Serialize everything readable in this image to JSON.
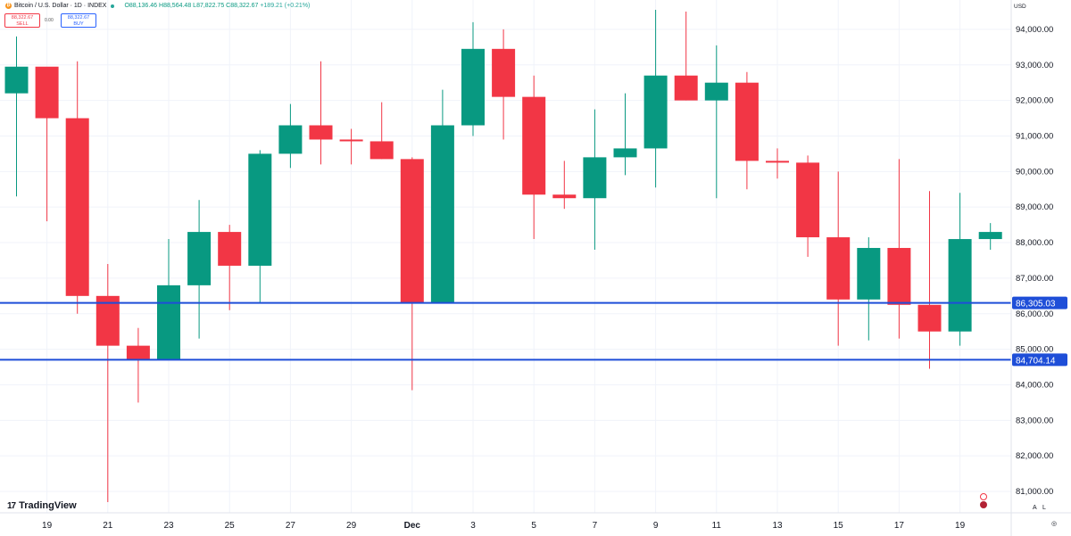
{
  "header": {
    "symbol": "Bitcoin / U.S. Dollar · 1D · INDEX",
    "open": "O88,136.46",
    "high": "H88,564.48",
    "low": "L87,822.75",
    "close": "C88,322.67",
    "change": "+189.21 (+0.21%)",
    "sell_price": "88,322.67",
    "sell_label": "SELL",
    "buy_price": "88,322.67",
    "buy_label": "BUY",
    "spread": "0.00",
    "currency": "USD"
  },
  "branding": {
    "logo_text": "TradingView",
    "logo_mark": "17"
  },
  "axis_controls": {
    "auto": "A",
    "log": "L"
  },
  "colors": {
    "up": "#089981",
    "down": "#f23645",
    "level_line": "#1e4ed8",
    "grid": "#f0f3fa"
  },
  "chart_data": {
    "type": "candlestick",
    "ylim": [
      80700,
      94700
    ],
    "yticks": [
      81000,
      82000,
      83000,
      84000,
      85000,
      86000,
      87000,
      88000,
      89000,
      90000,
      91000,
      92000,
      93000,
      94000
    ],
    "ytick_labels": [
      "81,000.00",
      "82,000.00",
      "83,000.00",
      "84,000.00",
      "85,000.00",
      "86,000.00",
      "87,000.00",
      "88,000.00",
      "89,000.00",
      "90,000.00",
      "91,000.00",
      "92,000.00",
      "93,000.00",
      "94,000.00"
    ],
    "xtick_labels": [
      {
        "index": 1,
        "label": "19"
      },
      {
        "index": 3,
        "label": "21"
      },
      {
        "index": 5,
        "label": "23"
      },
      {
        "index": 7,
        "label": "25"
      },
      {
        "index": 9,
        "label": "27"
      },
      {
        "index": 11,
        "label": "29"
      },
      {
        "index": 13,
        "label": "Dec"
      },
      {
        "index": 15,
        "label": "3"
      },
      {
        "index": 17,
        "label": "5"
      },
      {
        "index": 19,
        "label": "7"
      },
      {
        "index": 21,
        "label": "9"
      },
      {
        "index": 23,
        "label": "11"
      },
      {
        "index": 25,
        "label": "13"
      },
      {
        "index": 27,
        "label": "15"
      },
      {
        "index": 29,
        "label": "17"
      },
      {
        "index": 31,
        "label": "19"
      }
    ],
    "candles": [
      {
        "o": 92200,
        "h": 93800,
        "l": 89300,
        "c": 92950
      },
      {
        "o": 92950,
        "h": 92900,
        "l": 88600,
        "c": 91500
      },
      {
        "o": 91500,
        "h": 93100,
        "l": 86000,
        "c": 86500
      },
      {
        "o": 86500,
        "h": 87400,
        "l": 80700,
        "c": 85100
      },
      {
        "o": 85100,
        "h": 85600,
        "l": 83500,
        "c": 84700
      },
      {
        "o": 84700,
        "h": 88100,
        "l": 84700,
        "c": 86800
      },
      {
        "o": 86800,
        "h": 89200,
        "l": 85300,
        "c": 88300
      },
      {
        "o": 88300,
        "h": 88500,
        "l": 86100,
        "c": 87350
      },
      {
        "o": 87350,
        "h": 90600,
        "l": 86300,
        "c": 90500
      },
      {
        "o": 90500,
        "h": 91900,
        "l": 90100,
        "c": 91300
      },
      {
        "o": 91300,
        "h": 93100,
        "l": 90200,
        "c": 90900
      },
      {
        "o": 90900,
        "h": 91200,
        "l": 90200,
        "c": 90850
      },
      {
        "o": 90850,
        "h": 91950,
        "l": 90350,
        "c": 90350
      },
      {
        "o": 90350,
        "h": 90400,
        "l": 83850,
        "c": 86300
      },
      {
        "o": 86300,
        "h": 92300,
        "l": 86300,
        "c": 91300
      },
      {
        "o": 91300,
        "h": 94200,
        "l": 91000,
        "c": 93450
      },
      {
        "o": 93450,
        "h": 94000,
        "l": 90900,
        "c": 92100
      },
      {
        "o": 92100,
        "h": 92700,
        "l": 88100,
        "c": 89350
      },
      {
        "o": 89350,
        "h": 90300,
        "l": 88950,
        "c": 89250
      },
      {
        "o": 89250,
        "h": 91750,
        "l": 87800,
        "c": 90400
      },
      {
        "o": 90400,
        "h": 92200,
        "l": 89900,
        "c": 90650
      },
      {
        "o": 90650,
        "h": 94550,
        "l": 89550,
        "c": 92700
      },
      {
        "o": 92700,
        "h": 94500,
        "l": 92000,
        "c": 92000
      },
      {
        "o": 92000,
        "h": 93550,
        "l": 89250,
        "c": 92500
      },
      {
        "o": 92500,
        "h": 92800,
        "l": 89500,
        "c": 90300
      },
      {
        "o": 90300,
        "h": 90650,
        "l": 89800,
        "c": 90250
      },
      {
        "o": 90250,
        "h": 90450,
        "l": 87600,
        "c": 88150
      },
      {
        "o": 88150,
        "h": 90000,
        "l": 85100,
        "c": 86400
      },
      {
        "o": 86400,
        "h": 88150,
        "l": 85250,
        "c": 87850
      },
      {
        "o": 87850,
        "h": 90350,
        "l": 85300,
        "c": 86250
      },
      {
        "o": 86250,
        "h": 89450,
        "l": 84450,
        "c": 85500
      },
      {
        "o": 85500,
        "h": 89400,
        "l": 85100,
        "c": 88100
      },
      {
        "o": 88100,
        "h": 88550,
        "l": 87800,
        "c": 88300
      }
    ],
    "level_lines": [
      {
        "value": 86305.03,
        "label": "86,305.03"
      },
      {
        "value": 84704.14,
        "label": "84,704.14"
      }
    ]
  }
}
